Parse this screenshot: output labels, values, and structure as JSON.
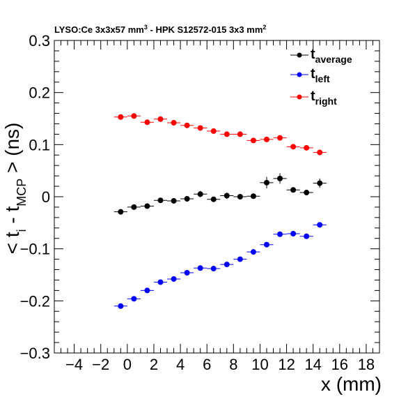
{
  "chart_data": {
    "type": "scatter",
    "title_main": "LYSO:Ce 3x3x57 mm",
    "title_sup1": "3",
    "title_mid": " - HPK S12572-015 3x3 mm",
    "title_sup2": "2",
    "xlabel": "x (mm)",
    "ylabel_pre": "< t",
    "ylabel_sub1": "i",
    "ylabel_mid": " - t",
    "ylabel_sub2": "MCP",
    "ylabel_post": " > (ns)",
    "xlim": [
      -5.5,
      19
    ],
    "ylim": [
      -0.3,
      0.3
    ],
    "x_ticks": [
      -4,
      -2,
      0,
      2,
      4,
      6,
      8,
      10,
      12,
      14,
      16,
      18
    ],
    "x_tick_labels": [
      "−4",
      "−2",
      "0",
      "2",
      "4",
      "6",
      "8",
      "10",
      "12",
      "14",
      "16",
      "18"
    ],
    "y_ticks": [
      -0.3,
      -0.2,
      -0.1,
      0,
      0.1,
      0.2,
      0.3
    ],
    "y_tick_labels": [
      "−0.3",
      "−0.2",
      "−0.1",
      "0",
      "0.1",
      "0.2",
      "0.3"
    ],
    "legend_position": "top-right",
    "x": [
      -0.5,
      0.5,
      1.5,
      2.5,
      3.5,
      4.5,
      5.5,
      6.5,
      7.5,
      8.5,
      9.5,
      10.5,
      11.5,
      12.5,
      13.5,
      14.5
    ],
    "series": [
      {
        "name_base": "t",
        "name_sub": "average",
        "color": "#000000",
        "values": [
          -0.029,
          -0.02,
          -0.018,
          -0.007,
          -0.008,
          -0.004,
          0.005,
          -0.005,
          0.002,
          0.0,
          0.001,
          0.027,
          0.035,
          0.013,
          0.008,
          0.026
        ],
        "errors": [
          0.004,
          0.004,
          0.004,
          0.004,
          0.004,
          0.004,
          0.006,
          0.005,
          0.006,
          0.004,
          0.004,
          0.011,
          0.01,
          0.005,
          0.005,
          0.009
        ]
      },
      {
        "name_base": "t",
        "name_sub": "left",
        "color": "#0000ff",
        "values": [
          -0.21,
          -0.196,
          -0.18,
          -0.164,
          -0.158,
          -0.146,
          -0.137,
          -0.138,
          -0.13,
          -0.12,
          -0.106,
          -0.092,
          -0.072,
          -0.071,
          -0.076,
          -0.054
        ],
        "errors": [
          0.003,
          0.003,
          0.003,
          0.003,
          0.003,
          0.003,
          0.003,
          0.003,
          0.003,
          0.003,
          0.003,
          0.003,
          0.003,
          0.003,
          0.003,
          0.003
        ]
      },
      {
        "name_base": "t",
        "name_sub": "right",
        "color": "#ff0000",
        "values": [
          0.153,
          0.155,
          0.143,
          0.149,
          0.142,
          0.137,
          0.132,
          0.126,
          0.12,
          0.12,
          0.108,
          0.11,
          0.113,
          0.096,
          0.094,
          0.085
        ],
        "errors": [
          0.003,
          0.003,
          0.003,
          0.003,
          0.003,
          0.003,
          0.003,
          0.003,
          0.003,
          0.003,
          0.003,
          0.003,
          0.003,
          0.003,
          0.003,
          0.003
        ]
      }
    ]
  }
}
